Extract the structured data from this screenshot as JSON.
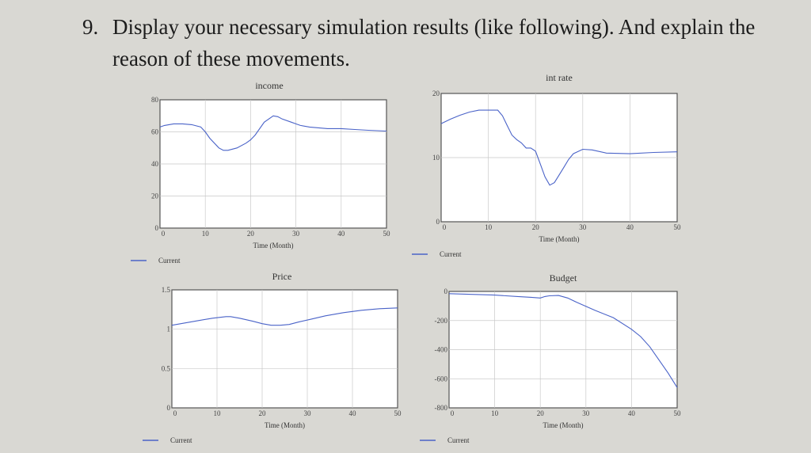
{
  "question": {
    "number": "9.",
    "line1": "Display your necessary simulation results (like following). And explain the",
    "line2": "reason of these movements."
  },
  "colors": {
    "series": "#4a63c8",
    "grid": "#c9c9c9",
    "frame": "#555555",
    "plot_bg": "#ffffff"
  },
  "chart_data": [
    {
      "type": "line",
      "title": "income",
      "xlabel": "Time (Month)",
      "ylabel": "",
      "xlim": [
        0,
        50
      ],
      "ylim": [
        0,
        80
      ],
      "xticks": [
        0,
        10,
        20,
        30,
        40,
        50
      ],
      "yticks": [
        0,
        20,
        40,
        60,
        80
      ],
      "grid": true,
      "legend_position": "bottom-left",
      "series": [
        {
          "name": "Current",
          "x": [
            0,
            1,
            3,
            5,
            7,
            9,
            10,
            11,
            13,
            14,
            15,
            17,
            19,
            20,
            21,
            23,
            25,
            26,
            27,
            29,
            30,
            31,
            33,
            35,
            37,
            40,
            43,
            46,
            50
          ],
          "y": [
            63,
            64,
            65,
            65,
            64.5,
            63,
            60,
            56,
            50,
            48.5,
            48.5,
            50,
            53,
            55,
            58,
            66,
            70,
            69.5,
            68,
            66,
            65,
            64,
            63,
            62.5,
            62,
            62,
            61.5,
            61,
            60.5
          ]
        }
      ]
    },
    {
      "type": "line",
      "title": "int rate",
      "xlabel": "Time (Month)",
      "ylabel": "",
      "xlim": [
        0,
        50
      ],
      "ylim": [
        0,
        20
      ],
      "xticks": [
        0,
        10,
        20,
        30,
        40,
        50
      ],
      "yticks": [
        0,
        10,
        20
      ],
      "grid": true,
      "legend_position": "bottom-left",
      "series": [
        {
          "name": "Current",
          "x": [
            0,
            2,
            4,
            6,
            8,
            10,
            12,
            13,
            14,
            15,
            16,
            17,
            18,
            19,
            20,
            21,
            22,
            23,
            24,
            25,
            26,
            27,
            28,
            30,
            32,
            35,
            40,
            45,
            50
          ],
          "y": [
            15.3,
            16,
            16.6,
            17.1,
            17.4,
            17.4,
            17.4,
            16.5,
            15,
            13.5,
            12.8,
            12.3,
            11.5,
            11.5,
            11,
            9,
            7,
            5.7,
            6.1,
            7.3,
            8.5,
            9.7,
            10.6,
            11.3,
            11.2,
            10.7,
            10.6,
            10.8,
            10.9
          ]
        }
      ]
    },
    {
      "type": "line",
      "title": "Price",
      "xlabel": "Time (Month)",
      "ylabel": "",
      "xlim": [
        0,
        50
      ],
      "ylim": [
        0,
        1.5
      ],
      "xticks": [
        0,
        10,
        20,
        30,
        40,
        50
      ],
      "yticks": [
        0,
        0.5,
        1,
        1.5
      ],
      "grid": true,
      "legend_position": "bottom-left",
      "series": [
        {
          "name": "Current",
          "x": [
            0,
            3,
            6,
            9,
            12,
            13,
            15,
            18,
            20,
            22,
            24,
            26,
            28,
            31,
            34,
            38,
            42,
            46,
            50
          ],
          "y": [
            1.05,
            1.08,
            1.11,
            1.14,
            1.16,
            1.16,
            1.14,
            1.1,
            1.07,
            1.05,
            1.05,
            1.06,
            1.09,
            1.13,
            1.17,
            1.21,
            1.24,
            1.26,
            1.27
          ]
        }
      ]
    },
    {
      "type": "line",
      "title": "Budget",
      "xlabel": "Time (Month)",
      "ylabel": "",
      "xlim": [
        0,
        50
      ],
      "ylim": [
        -800,
        0
      ],
      "xticks": [
        0,
        10,
        20,
        30,
        40,
        50
      ],
      "yticks": [
        0,
        -200,
        -400,
        -600,
        -800
      ],
      "grid": true,
      "legend_position": "bottom-left",
      "series": [
        {
          "name": "Current",
          "x": [
            0,
            5,
            10,
            15,
            18,
            20,
            21,
            22,
            24,
            26,
            28,
            32,
            36,
            40,
            42,
            44,
            46,
            48,
            50
          ],
          "y": [
            -15,
            -20,
            -25,
            -35,
            -40,
            -45,
            -35,
            -30,
            -28,
            -45,
            -75,
            -130,
            -180,
            -260,
            -310,
            -380,
            -470,
            -560,
            -660
          ]
        }
      ]
    }
  ]
}
